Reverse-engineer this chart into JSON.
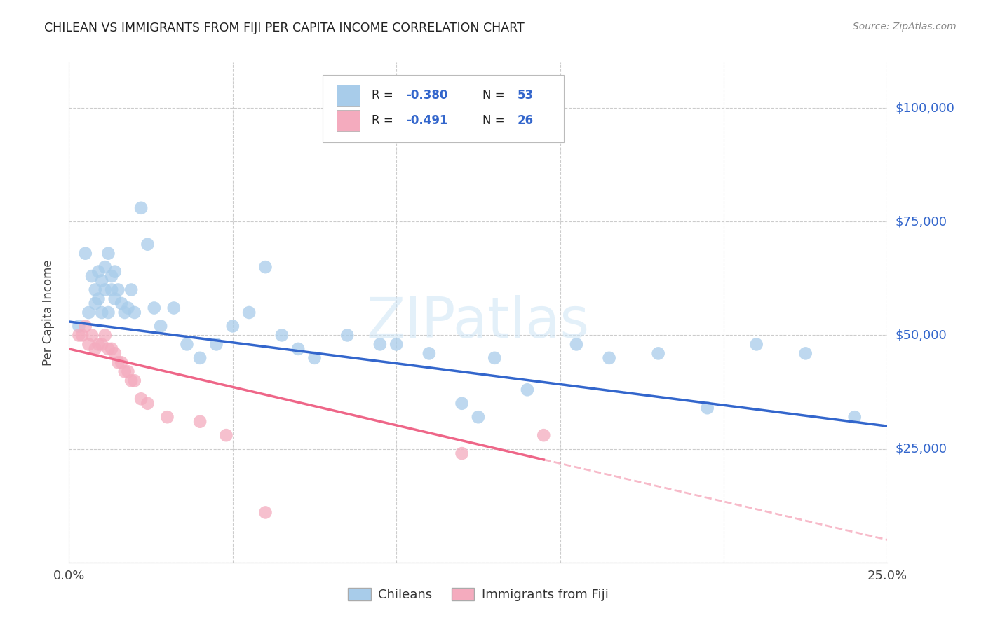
{
  "title": "CHILEAN VS IMMIGRANTS FROM FIJI PER CAPITA INCOME CORRELATION CHART",
  "source": "Source: ZipAtlas.com",
  "ylabel_label": "Per Capita Income",
  "xlim": [
    0.0,
    0.25
  ],
  "ylim": [
    0,
    110000
  ],
  "yticks": [
    0,
    25000,
    50000,
    75000,
    100000
  ],
  "ytick_labels": [
    "",
    "$25,000",
    "$50,000",
    "$75,000",
    "$100,000"
  ],
  "xticks": [
    0.0,
    0.05,
    0.1,
    0.15,
    0.2,
    0.25
  ],
  "xtick_labels": [
    "0.0%",
    "",
    "",
    "",
    "",
    "25.0%"
  ],
  "blue_R": "-0.380",
  "blue_N": "53",
  "pink_R": "-0.491",
  "pink_N": "26",
  "blue_color": "#A8CCEA",
  "pink_color": "#F4ABBE",
  "blue_line_color": "#3366CC",
  "pink_line_color": "#EE6688",
  "accent_color": "#3366CC",
  "watermark": "ZIPatlas",
  "chilean_x": [
    0.003,
    0.005,
    0.006,
    0.007,
    0.008,
    0.008,
    0.009,
    0.009,
    0.01,
    0.01,
    0.011,
    0.011,
    0.012,
    0.012,
    0.013,
    0.013,
    0.014,
    0.014,
    0.015,
    0.016,
    0.017,
    0.018,
    0.019,
    0.02,
    0.022,
    0.024,
    0.026,
    0.028,
    0.032,
    0.036,
    0.04,
    0.045,
    0.05,
    0.055,
    0.06,
    0.065,
    0.07,
    0.075,
    0.085,
    0.095,
    0.1,
    0.11,
    0.12,
    0.125,
    0.13,
    0.14,
    0.155,
    0.165,
    0.18,
    0.195,
    0.21,
    0.225,
    0.24
  ],
  "chilean_y": [
    52000,
    68000,
    55000,
    63000,
    60000,
    57000,
    64000,
    58000,
    62000,
    55000,
    65000,
    60000,
    68000,
    55000,
    63000,
    60000,
    64000,
    58000,
    60000,
    57000,
    55000,
    56000,
    60000,
    55000,
    78000,
    70000,
    56000,
    52000,
    56000,
    48000,
    45000,
    48000,
    52000,
    55000,
    65000,
    50000,
    47000,
    45000,
    50000,
    48000,
    48000,
    46000,
    35000,
    32000,
    45000,
    38000,
    48000,
    45000,
    46000,
    34000,
    48000,
    46000,
    32000
  ],
  "fiji_x": [
    0.003,
    0.004,
    0.005,
    0.006,
    0.007,
    0.008,
    0.009,
    0.01,
    0.011,
    0.012,
    0.013,
    0.014,
    0.015,
    0.016,
    0.017,
    0.018,
    0.019,
    0.02,
    0.022,
    0.024,
    0.03,
    0.04,
    0.048,
    0.06,
    0.12,
    0.145
  ],
  "fiji_y": [
    50000,
    50000,
    52000,
    48000,
    50000,
    47000,
    48000,
    48000,
    50000,
    47000,
    47000,
    46000,
    44000,
    44000,
    42000,
    42000,
    40000,
    40000,
    36000,
    35000,
    32000,
    31000,
    28000,
    11000,
    24000,
    28000
  ]
}
